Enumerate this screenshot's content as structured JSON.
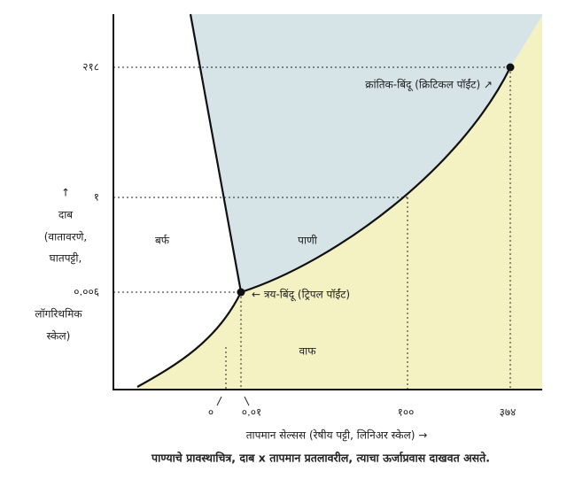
{
  "y_axis": {
    "arrow": "↑",
    "label_top": [
      "दाब",
      "(वातावरणे,",
      "घातपट्टी,"
    ],
    "label_bottom": [
      "लॉगरिथमिक",
      "स्केल)"
    ],
    "ticks": [
      "२१८",
      "१",
      "०.००६"
    ]
  },
  "x_axis": {
    "label": "तापमान सेल्सस (रेषीय पट्टी, लिनिअर स्केल)  →",
    "ticks": [
      "०",
      "०.०१",
      "१००",
      "३७४"
    ]
  },
  "regions": {
    "solid": "बर्फ",
    "liquid": "पाणी",
    "vapor": "वाफ"
  },
  "annotations": {
    "triple_point": "← त्रय-बिंदू (ट्रिपल पॉईंट)",
    "critical_point": "क्रांतिक-बिंदू (क्रिटिकल पॉईंट) ↗"
  },
  "caption": "पाण्याचे प्रावस्थाचित्र, दाब x तापमान प्रतलावरील, त्याचा ऊर्जाप्रवास दाखवत असते."
}
